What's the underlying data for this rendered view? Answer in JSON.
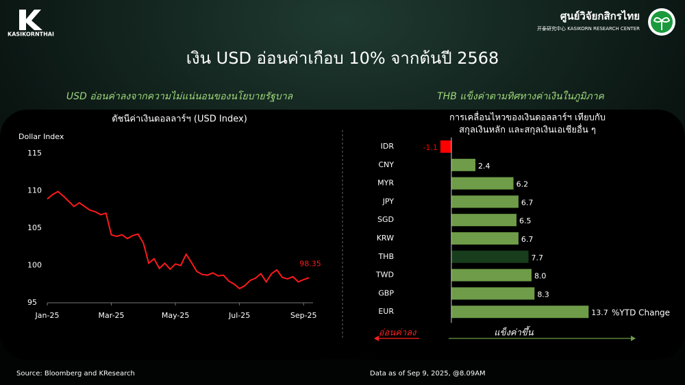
{
  "header": {
    "brand": "KASIKORNTHAI",
    "center_name": "ศูนย์วิจัยกสิกรไทย",
    "center_sub": "开泰研究中心 KASIKORN RESEARCH CENTER",
    "title": "เงิน USD อ่อนค่าเกือบ 10% จากต้นปี 2568"
  },
  "chart_data": [
    {
      "type": "line",
      "subtitle": "USD อ่อนค่าลงจากความไม่แน่นอนของนโยบายรัฐบาล",
      "title": "ดัชนีค่าเงินดอลลาร์ฯ (USD Index)",
      "y_label": "Dollar Index",
      "categories": [
        "Jan-25",
        null,
        null,
        null,
        null,
        null,
        null,
        null,
        null,
        null,
        null,
        null,
        "Mar-25",
        null,
        null,
        null,
        null,
        null,
        null,
        null,
        null,
        null,
        null,
        null,
        "May-25",
        null,
        null,
        null,
        null,
        null,
        null,
        null,
        null,
        null,
        null,
        null,
        "Jul-25",
        null,
        null,
        null,
        null,
        null,
        null,
        null,
        null,
        null,
        null,
        null,
        "Sep-25",
        null
      ],
      "series": [
        {
          "name": "USD Index",
          "color": "#ff1a1a",
          "values": [
            108.9,
            109.5,
            109.9,
            109.3,
            108.6,
            107.9,
            108.4,
            107.9,
            107.4,
            107.2,
            106.8,
            107.0,
            104.1,
            103.9,
            104.1,
            103.6,
            104.0,
            104.2,
            103.0,
            100.3,
            100.9,
            99.6,
            100.3,
            99.5,
            100.2,
            100.0,
            101.5,
            100.4,
            99.2,
            98.8,
            98.7,
            99.0,
            98.6,
            98.7,
            97.9,
            97.5,
            96.9,
            97.3,
            98.0,
            98.3,
            98.9,
            97.8,
            98.9,
            99.4,
            98.4,
            98.2,
            98.5,
            97.8,
            98.1,
            98.35
          ]
        }
      ],
      "ylim": [
        95,
        115
      ],
      "yticks": [
        95,
        100,
        105,
        110,
        115
      ],
      "grid": false
    },
    {
      "type": "hbar",
      "subtitle": "THB แข็งค่าตามทิศทางค่าเงินในภูมิภาค",
      "title": [
        "การเคลื่อนไหวของเงินดอลลาร์ฯ เทียบกับ",
        "สกุลเงินหลัก และสกุลเงินเอเชียอื่น ๆ"
      ],
      "categories": [
        "IDR",
        "CNY",
        "MYR",
        "JPY",
        "SGD",
        "KRW",
        "THB",
        "TWD",
        "GBP",
        "EUR"
      ],
      "values": [
        -1.1,
        2.4,
        6.2,
        6.7,
        6.5,
        6.7,
        7.7,
        8.0,
        8.3,
        13.7
      ],
      "value_labels": [
        "-1.1",
        "2.4",
        "6.2",
        "6.7",
        "6.5",
        "6.7",
        "7.7",
        "8.0",
        "8.3",
        "13.7"
      ],
      "colors": [
        "#ff0000",
        "#6e9c48",
        "#6e9c48",
        "#6e9c48",
        "#6e9c48",
        "#6e9c48",
        "#173d1c",
        "#6e9c48",
        "#6e9c48",
        "#6e9c48"
      ],
      "xlim": [
        -1.5,
        14.5
      ],
      "x_label": "%YTD Change",
      "left_arrow": "อ่อนค่าลง",
      "right_arrow": "แข็งค่าขึ้น"
    }
  ],
  "footer": {
    "source": "Source: Bloomberg and KResearch",
    "asof": "Data as of Sep 9, 2025, @8.09AM"
  }
}
